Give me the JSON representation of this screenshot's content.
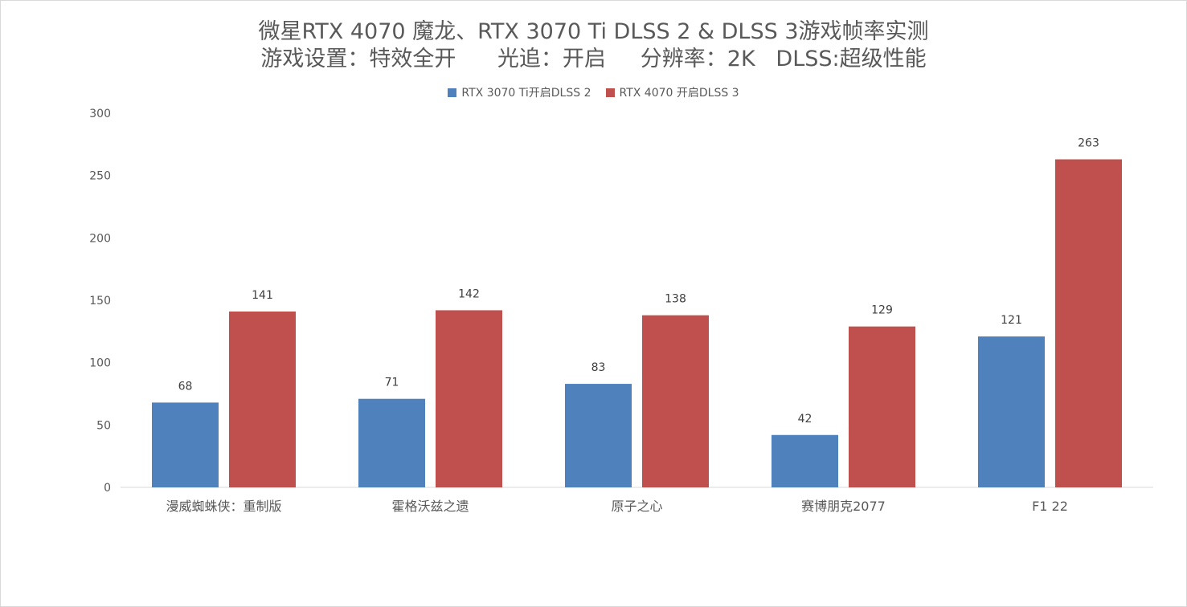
{
  "chart_data": {
    "type": "bar",
    "title": "微星RTX 4070 魔龙、RTX 3070 Ti DLSS 2 & DLSS 3游戏帧率实测",
    "subtitle": "游戏设置：特效全开      光追：开启     分辨率：2K   DLSS:超级性能",
    "categories": [
      "漫威蜘蛛侠：重制版",
      "霍格沃兹之遗",
      "原子之心",
      "赛博朋克2077",
      "F1 22"
    ],
    "series": [
      {
        "name": "RTX 3070 Ti开启DLSS 2",
        "color": "#4f81bd",
        "values": [
          68,
          71,
          83,
          42,
          121
        ]
      },
      {
        "name": "RTX 4070 开启DLSS 3",
        "color": "#c0504d",
        "values": [
          141,
          142,
          138,
          129,
          263
        ]
      }
    ],
    "ylim": [
      0,
      300
    ],
    "yticks": [
      0,
      50,
      100,
      150,
      200,
      250,
      300
    ],
    "grid": false,
    "legend_position": "top-center",
    "data_labels": true
  }
}
